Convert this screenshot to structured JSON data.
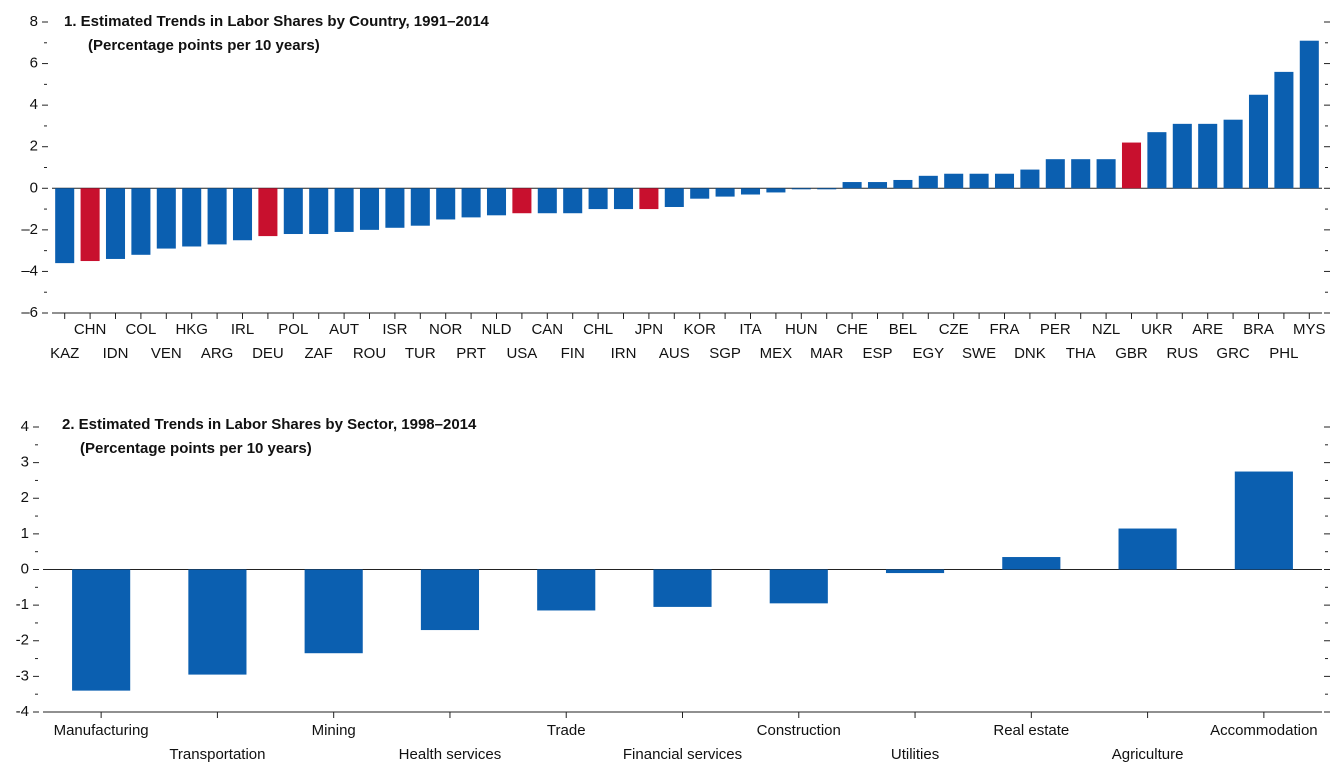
{
  "chart_data": [
    {
      "type": "bar",
      "title": "1. Estimated Trends in Labor Shares by Country, 1991–2014",
      "subtitle": "(Percentage points per 10 years)",
      "categories": [
        "KAZ",
        "CHN",
        "IDN",
        "COL",
        "VEN",
        "HKG",
        "ARG",
        "IRL",
        "DEU",
        "POL",
        "ZAF",
        "AUT",
        "ROU",
        "ISR",
        "TUR",
        "NOR",
        "PRT",
        "NLD",
        "USA",
        "CAN",
        "FIN",
        "CHL",
        "IRN",
        "JPN",
        "AUS",
        "KOR",
        "SGP",
        "ITA",
        "MEX",
        "HUN",
        "MAR",
        "CHE",
        "ESP",
        "BEL",
        "EGY",
        "CZE",
        "SWE",
        "FRA",
        "DNK",
        "PER",
        "THA",
        "NZL",
        "GBR",
        "UKR",
        "RUS",
        "ARE",
        "GRC",
        "BRA",
        "PHL",
        "MYS"
      ],
      "values": [
        -3.6,
        -3.5,
        -3.4,
        -3.2,
        -2.9,
        -2.8,
        -2.7,
        -2.5,
        -2.3,
        -2.2,
        -2.2,
        -2.1,
        -2.0,
        -1.9,
        -1.8,
        -1.5,
        -1.4,
        -1.3,
        -1.2,
        -1.2,
        -1.2,
        -1.0,
        -1.0,
        -1.0,
        -0.9,
        -0.5,
        -0.4,
        -0.3,
        -0.2,
        -0.05,
        -0.05,
        0.3,
        0.3,
        0.4,
        0.6,
        0.7,
        0.7,
        0.7,
        0.9,
        1.4,
        1.4,
        1.4,
        2.2,
        2.7,
        3.1,
        3.1,
        3.3,
        4.5,
        5.6,
        7.1
      ],
      "colors": [
        "#0b5fb0",
        "#c8102e",
        "#0b5fb0",
        "#0b5fb0",
        "#0b5fb0",
        "#0b5fb0",
        "#0b5fb0",
        "#0b5fb0",
        "#c8102e",
        "#0b5fb0",
        "#0b5fb0",
        "#0b5fb0",
        "#0b5fb0",
        "#0b5fb0",
        "#0b5fb0",
        "#0b5fb0",
        "#0b5fb0",
        "#0b5fb0",
        "#c8102e",
        "#0b5fb0",
        "#0b5fb0",
        "#0b5fb0",
        "#0b5fb0",
        "#c8102e",
        "#0b5fb0",
        "#0b5fb0",
        "#0b5fb0",
        "#0b5fb0",
        "#0b5fb0",
        "#0b5fb0",
        "#0b5fb0",
        "#0b5fb0",
        "#0b5fb0",
        "#0b5fb0",
        "#0b5fb0",
        "#0b5fb0",
        "#0b5fb0",
        "#0b5fb0",
        "#0b5fb0",
        "#0b5fb0",
        "#0b5fb0",
        "#0b5fb0",
        "#c8102e",
        "#0b5fb0",
        "#0b5fb0",
        "#0b5fb0",
        "#0b5fb0",
        "#0b5fb0",
        "#0b5fb0",
        "#0b5fb0"
      ],
      "ylim": [
        -6,
        8
      ],
      "yticks": [
        {
          "value": -6,
          "label": "–6"
        },
        {
          "value": -4,
          "label": "–4"
        },
        {
          "value": -2,
          "label": "–2"
        },
        0,
        2,
        4,
        6,
        8
      ],
      "minor_yticks": [
        -5,
        -3,
        -1,
        1,
        3,
        5,
        7
      ]
    },
    {
      "type": "bar",
      "title": "2. Estimated Trends in Labor Shares by Sector, 1998–2014",
      "subtitle": "(Percentage points per 10 years)",
      "categories": [
        "Manufacturing",
        "Transportation",
        "Mining",
        "Health services",
        "Trade",
        "Financial services",
        "Construction",
        "Utilities",
        "Real estate",
        "Agriculture",
        "Accommodation"
      ],
      "values": [
        -3.4,
        -2.95,
        -2.35,
        -1.7,
        -1.15,
        -1.05,
        -0.95,
        -0.1,
        0.35,
        1.15,
        2.75
      ],
      "colors": [
        "#0b5fb0",
        "#0b5fb0",
        "#0b5fb0",
        "#0b5fb0",
        "#0b5fb0",
        "#0b5fb0",
        "#0b5fb0",
        "#0b5fb0",
        "#0b5fb0",
        "#0b5fb0",
        "#0b5fb0"
      ],
      "ylim": [
        -4,
        4
      ],
      "yticks": [
        -4,
        -3,
        -2,
        -1,
        0,
        1,
        2,
        3,
        4
      ],
      "minor_yticks": [
        -3.5,
        -2.5,
        -1.5,
        -0.5,
        0.5,
        1.5,
        2.5,
        3.5
      ]
    }
  ]
}
